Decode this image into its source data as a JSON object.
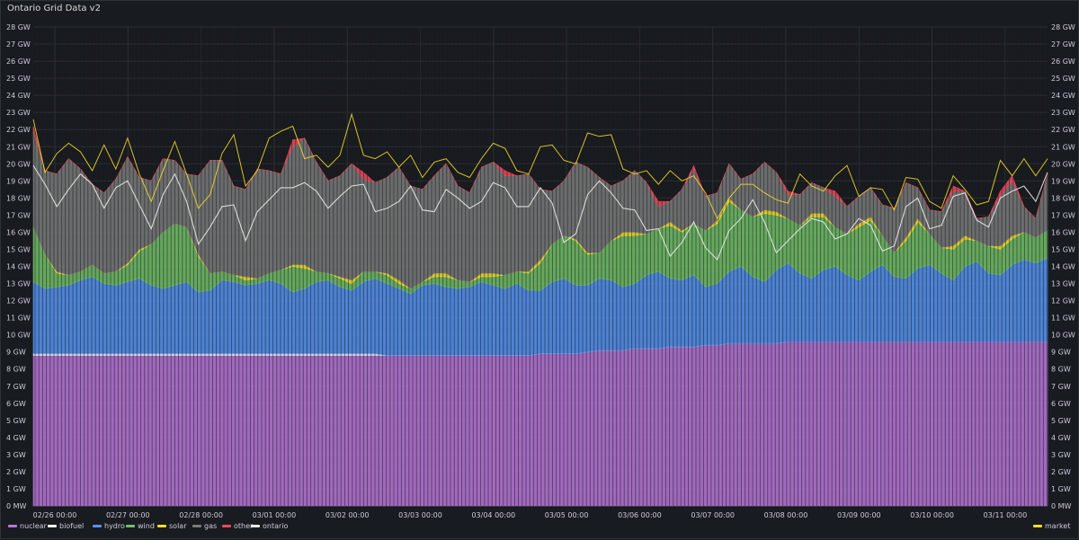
{
  "panel": {
    "title": "Ontario Grid Data v2"
  },
  "colors": {
    "background": "#181b1f",
    "grid": "#2c3033",
    "tick_text": "#ccccdc"
  },
  "chart_data": {
    "type": "area",
    "title": "Ontario Grid Data v2",
    "xlabel": "",
    "ylabel": "",
    "stacked": true,
    "ylim": [
      0,
      28
    ],
    "y_unit": "GW",
    "y_ticks": [
      "0 MW",
      "1 GW",
      "2 GW",
      "3 GW",
      "4 GW",
      "5 GW",
      "6 GW",
      "7 GW",
      "8 GW",
      "9 GW",
      "10 GW",
      "11 GW",
      "12 GW",
      "13 GW",
      "14 GW",
      "15 GW",
      "16 GW",
      "17 GW",
      "18 GW",
      "19 GW",
      "20 GW",
      "21 GW",
      "22 GW",
      "23 GW",
      "24 GW",
      "25 GW",
      "26 GW",
      "27 GW",
      "28 GW"
    ],
    "x_ticks": [
      "02/26 00:00",
      "02/27 00:00",
      "02/28 00:00",
      "03/01 00:00",
      "03/02 00:00",
      "03/03 00:00",
      "03/04 00:00",
      "03/05 00:00",
      "03/06 00:00",
      "03/07 00:00",
      "03/08 00:00",
      "03/09 00:00",
      "03/10 00:00",
      "03/11 00:00"
    ],
    "x_range_days": [
      "02/25 20:00",
      "03/12 06:00"
    ],
    "grid": true,
    "legend_position": "bottom",
    "series": [
      {
        "name": "nuclear",
        "color": "#b877d9",
        "values": [
          8.8,
          8.8,
          8.8,
          8.8,
          8.8,
          8.8,
          8.8,
          8.8,
          8.8,
          8.8,
          8.8,
          8.8,
          8.8,
          8.8,
          8.8,
          8.8,
          8.8,
          8.8,
          8.8,
          8.8,
          8.8,
          8.8,
          8.8,
          8.8,
          8.8,
          8.8,
          8.8,
          8.8,
          8.8,
          8.8,
          8.8,
          8.8,
          8.8,
          8.8,
          8.8,
          8.8,
          8.8,
          8.8,
          8.8,
          8.8,
          8.8,
          8.8,
          8.8,
          8.9,
          8.9,
          8.9,
          8.9,
          9.0,
          9.1,
          9.1,
          9.1,
          9.2,
          9.2,
          9.2,
          9.3,
          9.3,
          9.3,
          9.4,
          9.4,
          9.5,
          9.5,
          9.5,
          9.5,
          9.5,
          9.6,
          9.6,
          9.6,
          9.6,
          9.6,
          9.6,
          9.6,
          9.6,
          9.6,
          9.6,
          9.6,
          9.6,
          9.6,
          9.6,
          9.6,
          9.6,
          9.6,
          9.6,
          9.6,
          9.6,
          9.6,
          9.6,
          9.6
        ]
      },
      {
        "name": "biofuel",
        "color": "#f2f2f2",
        "values": [
          0.1,
          0.1,
          0.1,
          0.1,
          0.1,
          0.1,
          0.1,
          0.1,
          0.1,
          0.1,
          0.1,
          0.1,
          0.1,
          0.1,
          0.1,
          0.1,
          0.1,
          0.1,
          0.1,
          0.1,
          0.1,
          0.1,
          0.1,
          0.1,
          0.1,
          0.1,
          0.1,
          0.1,
          0.1,
          0.1,
          0.0,
          0.0,
          0.0,
          0.0,
          0.0,
          0.0,
          0.0,
          0.0,
          0.0,
          0.0,
          0.0,
          0.0,
          0.0,
          0.0,
          0.0,
          0.0,
          0.0,
          0.0,
          0.0,
          0.0,
          0.0,
          0.0,
          0.0,
          0.0,
          0.0,
          0.0,
          0.0,
          0.0,
          0.0,
          0.0,
          0.0,
          0.0,
          0.0,
          0.0,
          0.0,
          0.0,
          0.0,
          0.0,
          0.0,
          0.0,
          0.0,
          0.0,
          0.0,
          0.0,
          0.0,
          0.0,
          0.0,
          0.0,
          0.0,
          0.0,
          0.0,
          0.0,
          0.0,
          0.0,
          0.0,
          0.0,
          0.0
        ]
      },
      {
        "name": "hydro",
        "color": "#5794f2",
        "values": [
          4.2,
          3.8,
          3.9,
          4.0,
          4.3,
          4.5,
          4.1,
          4.0,
          4.2,
          4.4,
          4.0,
          3.8,
          4.0,
          4.2,
          3.6,
          3.7,
          4.3,
          4.2,
          4.0,
          4.1,
          4.3,
          4.1,
          3.6,
          3.8,
          4.2,
          4.3,
          3.9,
          3.7,
          4.2,
          4.4,
          4.2,
          3.9,
          3.6,
          4.1,
          4.2,
          4.0,
          3.9,
          4.0,
          4.3,
          4.1,
          3.9,
          4.2,
          3.8,
          3.7,
          4.2,
          4.4,
          4.0,
          3.9,
          4.2,
          4.1,
          3.7,
          3.8,
          4.3,
          4.5,
          4.0,
          3.9,
          4.2,
          3.4,
          3.6,
          4.2,
          4.5,
          3.9,
          3.6,
          4.3,
          4.6,
          4.0,
          3.7,
          4.2,
          4.4,
          3.9,
          3.6,
          4.1,
          4.5,
          3.8,
          3.7,
          4.3,
          4.5,
          4.0,
          3.6,
          4.4,
          4.7,
          4.0,
          3.9,
          4.5,
          4.8,
          4.6,
          4.9
        ]
      },
      {
        "name": "wind",
        "color": "#73bf69",
        "values": [
          3.2,
          2.0,
          0.8,
          0.6,
          0.5,
          0.7,
          0.6,
          0.8,
          1.0,
          1.6,
          2.4,
          3.3,
          3.6,
          3.2,
          2.1,
          1.0,
          0.5,
          0.4,
          0.3,
          0.3,
          0.4,
          0.8,
          1.5,
          1.2,
          0.6,
          0.4,
          0.5,
          0.4,
          0.6,
          0.4,
          0.5,
          0.3,
          0.3,
          0.2,
          0.4,
          0.6,
          0.5,
          0.3,
          0.3,
          0.5,
          0.8,
          0.7,
          1.0,
          1.6,
          2.2,
          2.5,
          2.6,
          1.8,
          1.5,
          2.3,
          3.0,
          2.8,
          2.4,
          2.5,
          3.1,
          2.8,
          3.0,
          3.3,
          3.5,
          4.1,
          3.3,
          3.5,
          4.0,
          3.2,
          2.6,
          2.8,
          3.6,
          3.1,
          2.3,
          2.4,
          3.1,
          3.0,
          1.7,
          1.4,
          2.2,
          2.7,
          1.8,
          1.5,
          1.8,
          1.6,
          1.2,
          1.6,
          1.5,
          1.5,
          1.6,
          1.5,
          1.6
        ]
      },
      {
        "name": "solar",
        "color": "#fade2a",
        "values": [
          0.0,
          0.0,
          0.1,
          0.0,
          0.0,
          0.0,
          0.0,
          0.0,
          0.1,
          0.1,
          0.0,
          0.0,
          0.0,
          0.0,
          0.1,
          0.0,
          0.0,
          0.0,
          0.2,
          0.0,
          0.0,
          0.0,
          0.1,
          0.2,
          0.0,
          0.0,
          0.1,
          0.2,
          0.0,
          0.0,
          0.1,
          0.2,
          0.0,
          0.0,
          0.2,
          0.2,
          0.0,
          0.0,
          0.2,
          0.2,
          0.0,
          0.0,
          0.1,
          0.2,
          0.0,
          0.0,
          0.1,
          0.1,
          0.0,
          0.0,
          0.2,
          0.2,
          0.0,
          0.0,
          0.2,
          0.1,
          0.0,
          0.0,
          0.2,
          0.2,
          0.0,
          0.0,
          0.2,
          0.2,
          0.0,
          0.0,
          0.2,
          0.2,
          0.0,
          0.0,
          0.2,
          0.2,
          0.0,
          0.0,
          0.2,
          0.2,
          0.0,
          0.0,
          0.2,
          0.2,
          0.0,
          0.0,
          0.2,
          0.2,
          0.0,
          0.0,
          0.0
        ]
      },
      {
        "name": "gas",
        "color": "#7a7a7a",
        "values": [
          5.6,
          4.9,
          5.7,
          6.8,
          6.0,
          4.7,
          4.7,
          5.4,
          6.2,
          4.2,
          3.7,
          4.3,
          3.7,
          3.1,
          4.6,
          6.6,
          6.5,
          5.2,
          5.1,
          6.4,
          6.0,
          5.6,
          6.9,
          7.4,
          6.4,
          5.4,
          5.9,
          6.8,
          5.4,
          5.2,
          5.6,
          6.6,
          6.0,
          5.4,
          5.7,
          6.4,
          5.5,
          5.2,
          6.2,
          6.5,
          5.8,
          5.6,
          5.7,
          4.1,
          3.1,
          3.2,
          4.5,
          5.0,
          4.4,
          3.2,
          3.0,
          3.6,
          3.0,
          1.3,
          1.2,
          2.4,
          3.2,
          2.0,
          1.6,
          2.0,
          1.8,
          2.5,
          2.8,
          2.3,
          1.4,
          1.8,
          1.8,
          1.5,
          1.8,
          1.6,
          1.6,
          1.7,
          1.8,
          2.6,
          3.2,
          1.8,
          1.4,
          2.1,
          3.2,
          2.6,
          1.3,
          1.7,
          2.9,
          3.2,
          1.5,
          1.1,
          3.3
        ]
      },
      {
        "name": "other",
        "color": "#f2495c",
        "values": [
          0.3,
          0.0,
          0.0,
          0.0,
          0.0,
          0.0,
          0.0,
          0.0,
          0.0,
          0.0,
          0.0,
          0.0,
          0.0,
          0.0,
          0.0,
          0.0,
          0.0,
          0.0,
          0.0,
          0.0,
          0.0,
          0.0,
          0.4,
          0.0,
          0.0,
          0.0,
          0.0,
          0.0,
          0.4,
          0.0,
          0.0,
          0.0,
          0.0,
          0.0,
          0.0,
          0.0,
          0.0,
          0.0,
          0.0,
          0.0,
          0.3,
          0.0,
          0.0,
          0.0,
          0.0,
          0.0,
          0.0,
          0.0,
          0.0,
          0.0,
          0.0,
          0.0,
          0.0,
          0.3,
          0.0,
          0.0,
          0.2,
          0.0,
          0.0,
          0.0,
          0.0,
          0.0,
          0.0,
          0.0,
          0.2,
          0.0,
          0.0,
          0.0,
          0.3,
          0.0,
          0.0,
          0.0,
          0.0,
          0.0,
          0.0,
          0.0,
          0.0,
          0.0,
          0.3,
          0.0,
          0.0,
          0.0,
          0.3,
          0.3,
          0.0,
          0.0,
          0.0
        ]
      },
      {
        "name": "ontario",
        "color": "#e8e8e8",
        "type": "line",
        "values": [
          19.9,
          18.8,
          17.5,
          18.5,
          19.4,
          18.8,
          17.4,
          18.6,
          19.0,
          17.6,
          16.2,
          18.2,
          19.4,
          17.8,
          15.3,
          16.3,
          17.5,
          17.6,
          15.5,
          17.2,
          17.9,
          18.6,
          18.6,
          18.9,
          18.4,
          17.4,
          18.1,
          18.7,
          18.8,
          17.2,
          17.4,
          17.8,
          18.7,
          17.3,
          17.2,
          18.5,
          18.0,
          17.4,
          17.8,
          18.9,
          18.6,
          17.5,
          17.5,
          18.6,
          17.7,
          15.4,
          15.9,
          18.2,
          19.0,
          18.3,
          17.4,
          17.3,
          16.1,
          16.2,
          14.6,
          15.4,
          16.6,
          15.1,
          14.4,
          16.1,
          16.8,
          17.9,
          16.6,
          14.8,
          15.5,
          16.2,
          16.8,
          16.6,
          15.6,
          15.9,
          16.8,
          16.4,
          14.9,
          15.2,
          17.5,
          18.0,
          16.2,
          16.4,
          18.1,
          18.3,
          16.7,
          16.3,
          18.0,
          18.4,
          18.7,
          17.8,
          19.5
        ]
      },
      {
        "name": "market",
        "color": "#fade2a",
        "type": "line",
        "values": [
          22.6,
          19.5,
          20.6,
          21.2,
          20.7,
          19.6,
          21.1,
          19.7,
          21.5,
          19.4,
          17.8,
          19.6,
          21.3,
          19.4,
          17.4,
          18.2,
          20.6,
          21.7,
          18.7,
          19.6,
          21.5,
          21.9,
          22.2,
          20.3,
          20.5,
          19.8,
          20.5,
          22.9,
          20.5,
          20.3,
          20.7,
          19.8,
          20.5,
          19.2,
          20.1,
          20.3,
          19.5,
          19.2,
          20.3,
          21.2,
          20.9,
          19.6,
          19.4,
          21.0,
          21.1,
          20.2,
          20.0,
          21.8,
          21.6,
          21.7,
          19.7,
          19.4,
          19.6,
          18.8,
          19.6,
          19.0,
          19.3,
          18.3,
          16.8,
          18.0,
          18.8,
          18.8,
          18.3,
          17.9,
          17.7,
          19.4,
          18.7,
          18.4,
          19.3,
          19.9,
          18.1,
          18.6,
          18.5,
          17.3,
          19.2,
          19.1,
          17.8,
          17.4,
          19.3,
          18.5,
          17.6,
          17.8,
          20.2,
          19.3,
          20.3,
          19.3,
          20.3
        ]
      }
    ]
  }
}
